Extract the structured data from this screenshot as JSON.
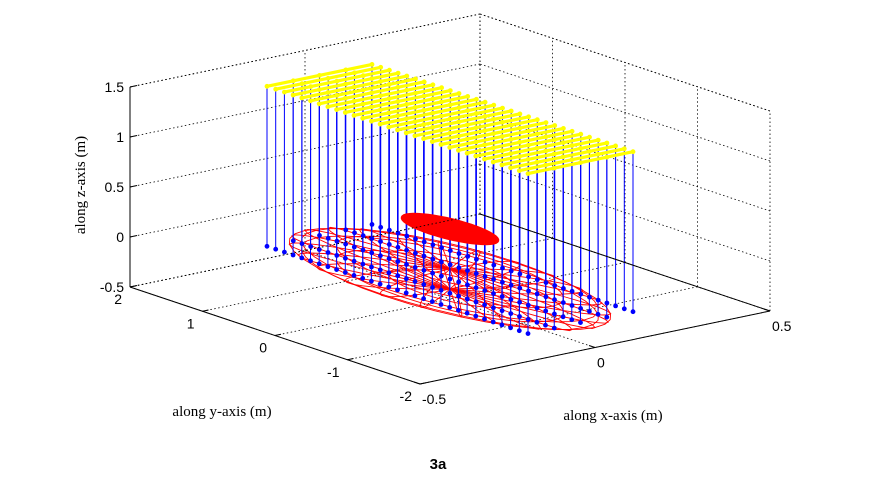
{
  "chart_data": {
    "type": "3d-line",
    "caption": "3a",
    "xlabel": "along x-axis (m)",
    "ylabel": "along y-axis (m)",
    "zlabel": "along z-axis (m)",
    "xlim": [
      -0.5,
      0.5
    ],
    "ylim": [
      -2,
      2
    ],
    "zlim": [
      -0.5,
      1.5
    ],
    "x_ticks": [
      "-0.5",
      "0",
      "0.5"
    ],
    "y_ticks": [
      "2",
      "1",
      "0",
      "-1",
      "-2"
    ],
    "z_ticks": [
      "1.5",
      "1",
      "0.5",
      "0",
      "-0.5"
    ],
    "grid": true,
    "box": true,
    "series": [
      {
        "label_role": "top line elements",
        "color": "#ffff00",
        "elements": 31,
        "z": 1.3,
        "y_range": [
          -1.8,
          1.8
        ],
        "x_half_width": 0.15
      },
      {
        "label_role": "vertical connectors",
        "color": "#0000ff",
        "z_range": [
          -0.3,
          1.3
        ]
      },
      {
        "label_role": "bottom points",
        "color": "#0000ff",
        "z": -0.3
      },
      {
        "label_role": "ellipsoid wireframe",
        "color": "#ff0000",
        "center": [
          0,
          0,
          -0.3
        ],
        "semi_axes": [
          0.2,
          2,
          0.1
        ]
      },
      {
        "label_role": "inner disc",
        "color": "#ff0000",
        "center": [
          0,
          0,
          0.2
        ],
        "semi_axes": [
          0.06,
          0.6,
          0.02
        ]
      }
    ]
  }
}
